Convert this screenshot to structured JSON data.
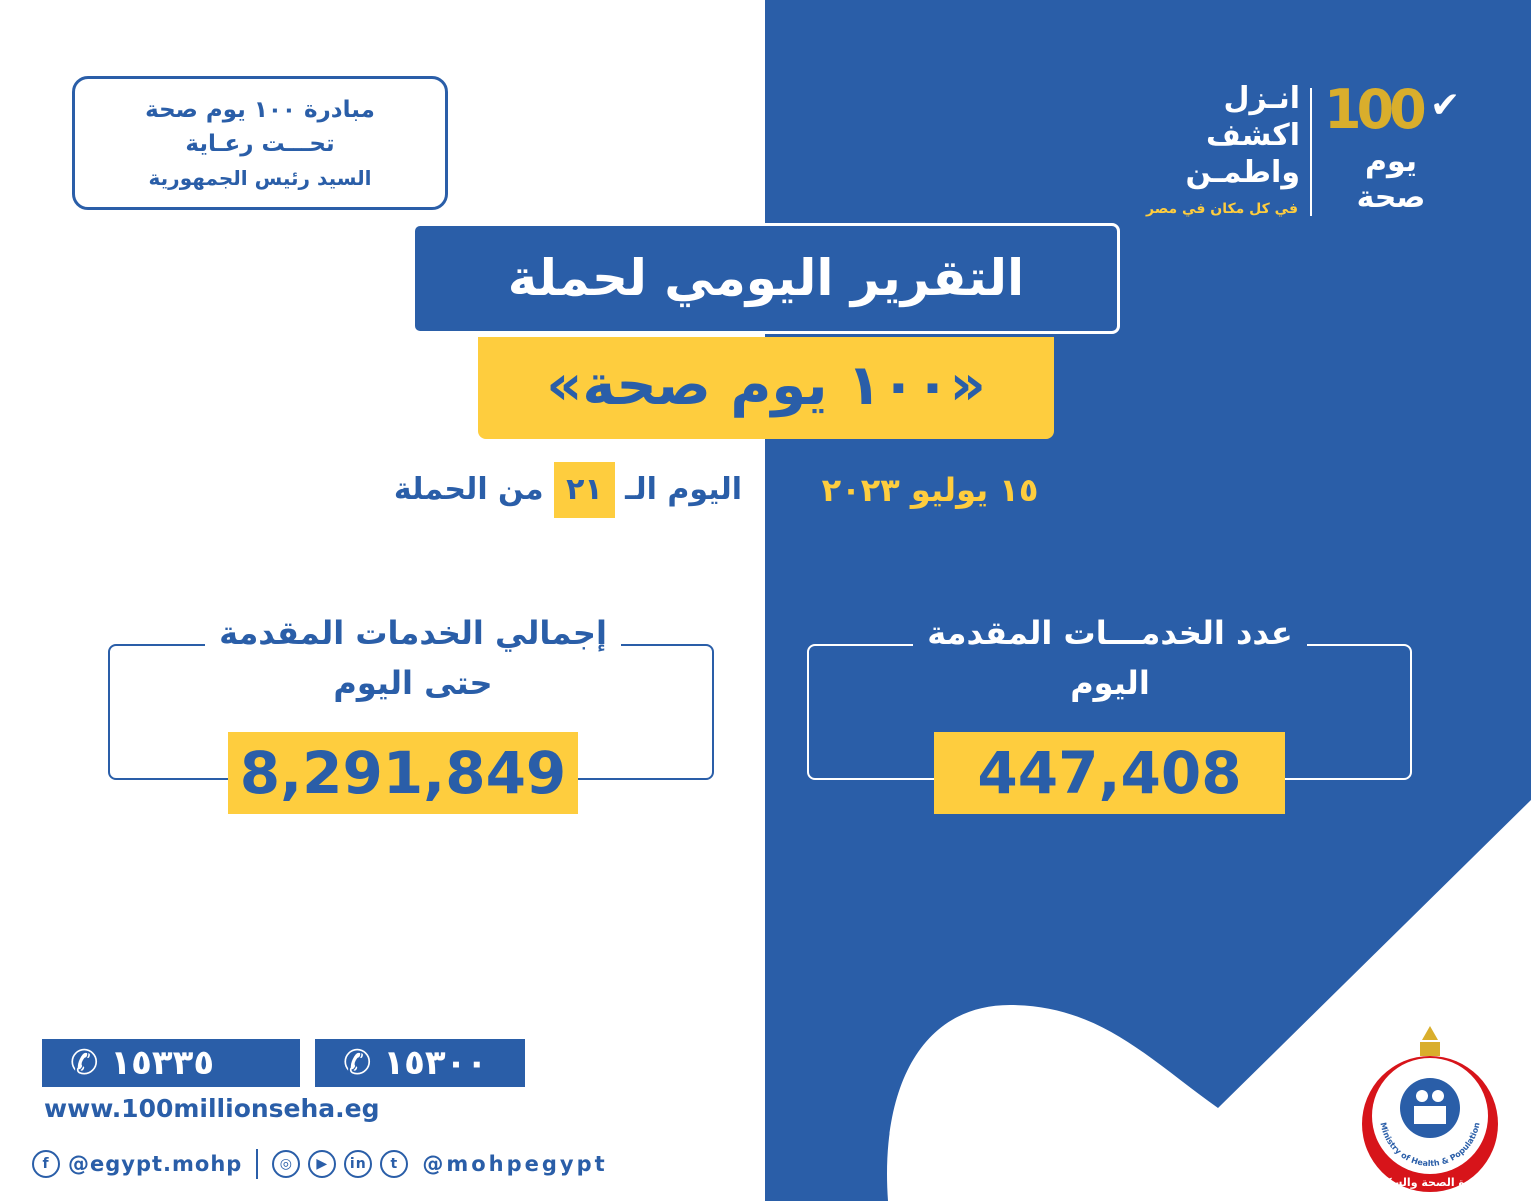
{
  "colors": {
    "brand_blue": "#2a5ea8",
    "brand_yellow": "#fecd3e",
    "logo_gold": "#d9ae2c",
    "ministry_red": "#d7141a"
  },
  "initiative": {
    "line1": "مبادرة ١٠٠ يوم صحة",
    "line2": "تحـــت رعـاية",
    "line3": "السيد رئيس الجمهورية"
  },
  "logo": {
    "number": "100",
    "check_icon": "checkmark-icon",
    "name": "يوم صحة",
    "slogan": [
      "انـزل",
      "اكشف",
      "واطمـن"
    ],
    "tagline": "في كل مكان في مصر"
  },
  "header": {
    "title": "التقرير اليومي لحملة",
    "subtitle": "«١٠٠ يوم صحة»"
  },
  "day": {
    "prefix": "اليوم الـ",
    "number": "٢١",
    "suffix": "من الحملة"
  },
  "date": "١٥ يوليو ٢٠٢٣",
  "stats": {
    "total": {
      "label": "إجمالي الخدمات المقدمة",
      "label2": "حتى اليوم",
      "value": "8,291,849"
    },
    "today": {
      "label": "عدد الخدمـــات المقدمة",
      "label2": "اليوم",
      "value": "447,408"
    }
  },
  "contact": {
    "hotlines": [
      "١٥٣٣٥",
      "١٥٣٠٠"
    ],
    "website": "www.100millionseha.eg",
    "facebook": "@egypt.mohp",
    "social_handle": "@mohpegypt"
  },
  "ministry": {
    "name": "وزارة الصحة والسكان",
    "name_en": "Ministry of Health & Population"
  }
}
